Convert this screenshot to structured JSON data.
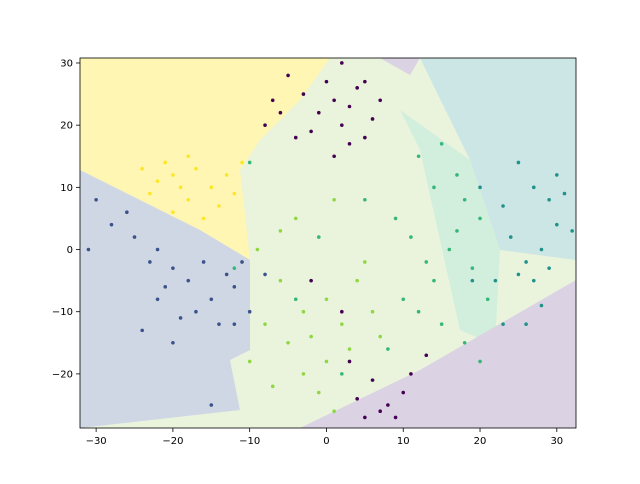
{
  "chart_data": {
    "type": "scatter",
    "xlim": [
      -32.1,
      32.5
    ],
    "ylim": [
      -28.7,
      30.8
    ],
    "xticks": [
      {
        "value": -30,
        "label": "−30"
      },
      {
        "value": -20,
        "label": "−20"
      },
      {
        "value": -10,
        "label": "−10"
      },
      0,
      10,
      20,
      30
    ],
    "yticks": [
      {
        "value": -20,
        "label": "−20"
      },
      {
        "value": -10,
        "label": "−10"
      },
      0,
      10,
      20,
      30
    ],
    "series": [
      {
        "color": "#440154",
        "x": [
          -5,
          -3,
          -1,
          0,
          1,
          2,
          3,
          4,
          5,
          6,
          -6,
          -8,
          -2,
          3,
          7,
          -4,
          1,
          2,
          -7,
          5,
          5,
          8,
          10,
          7,
          4,
          11,
          9,
          3,
          6,
          -2,
          2,
          13
        ],
        "y": [
          28,
          25,
          22,
          27,
          24,
          20,
          23,
          26,
          18,
          21,
          22,
          20,
          19,
          17,
          24,
          18,
          15,
          30,
          24,
          27,
          -27,
          -25,
          -23,
          -26,
          -24,
          -20,
          -27,
          -18,
          -21,
          -5,
          -10,
          -17
        ]
      },
      {
        "color": "#3b528b",
        "x": [
          -30,
          -28,
          -25,
          -22,
          -20,
          -18,
          -15,
          -12,
          -10,
          -14,
          -17,
          -22,
          -24,
          -20,
          -13,
          -11,
          -16,
          -26,
          -19,
          -12,
          -15,
          -8,
          -23,
          -31,
          -21
        ],
        "y": [
          8,
          4,
          2,
          0,
          -3,
          -5,
          -8,
          -6,
          -10,
          -12,
          -10,
          -8,
          -13,
          -15,
          -4,
          -2,
          -2,
          6,
          -11,
          -12,
          -25,
          -4,
          -2,
          0,
          -6
        ]
      },
      {
        "color": "#21918c",
        "x": [
          25,
          27,
          29,
          30,
          28,
          26,
          24,
          22,
          27,
          29,
          23,
          26,
          31,
          20,
          23,
          28,
          32,
          19,
          25,
          30
        ],
        "y": [
          14,
          10,
          8,
          4,
          0,
          -2,
          2,
          -5,
          -5,
          -3,
          -12,
          -12,
          9,
          10,
          7,
          -9,
          3,
          -5,
          -4,
          12
        ]
      },
      {
        "color": "#35b779",
        "x": [
          12,
          15,
          17,
          14,
          18,
          20,
          16,
          19,
          13,
          10,
          15,
          18,
          20,
          11,
          21,
          8,
          17,
          14,
          5,
          -1,
          2,
          -4,
          9,
          12,
          -10,
          -12
        ],
        "y": [
          15,
          17,
          12,
          10,
          8,
          5,
          0,
          -3,
          -2,
          -8,
          -12,
          -15,
          -18,
          2,
          -8,
          -16,
          3,
          -5,
          8,
          2,
          -20,
          -8,
          5,
          -10,
          14,
          -3
        ]
      },
      {
        "color": "#90d743",
        "x": [
          -5,
          -3,
          0,
          2,
          -7,
          -1,
          3,
          -8,
          -6,
          -9,
          -4,
          0,
          4,
          6,
          -2,
          1,
          -10,
          -3,
          5,
          7,
          -6,
          1
        ],
        "y": [
          -15,
          -20,
          -18,
          -12,
          -22,
          -23,
          -16,
          -12,
          -5,
          0,
          5,
          -8,
          -5,
          -10,
          -14,
          -26,
          -18,
          -10,
          -2,
          -14,
          3,
          8
        ]
      },
      {
        "color": "#fde725",
        "x": [
          -24,
          -22,
          -20,
          -19,
          -21,
          -18,
          -17,
          -15,
          -14,
          -13,
          -12,
          -16,
          -23,
          -20,
          -11,
          -18
        ],
        "y": [
          13,
          11,
          12,
          10,
          14,
          8,
          13,
          10,
          7,
          12,
          9,
          5,
          9,
          6,
          14,
          15
        ]
      }
    ]
  }
}
